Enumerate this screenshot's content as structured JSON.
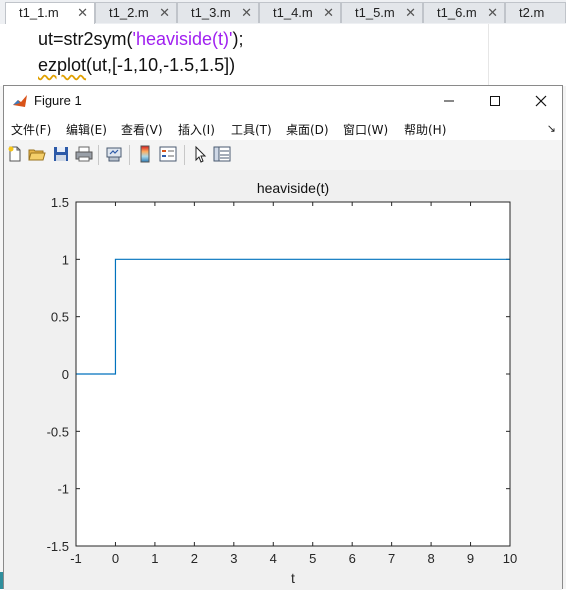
{
  "editor": {
    "tabs": [
      {
        "label": "t1_1.m",
        "active": true
      },
      {
        "label": "t1_2.m"
      },
      {
        "label": "t1_3.m"
      },
      {
        "label": "t1_4.m"
      },
      {
        "label": "t1_5.m"
      },
      {
        "label": "t1_6.m"
      },
      {
        "label": "t2.m"
      }
    ],
    "code": {
      "line1_prefix": "ut=str2sym(",
      "line1_string": "'heaviside(t)'",
      "line1_suffix": ");",
      "line2_fn": "ezplot",
      "line2_args": "(ut,[-1,10,-1.5,1.5])"
    }
  },
  "figure": {
    "title": "Figure 1",
    "menu": [
      "文件(F)",
      "编辑(E)",
      "查看(V)",
      "插入(I)",
      "工具(T)",
      "桌面(D)",
      "窗口(W)",
      "帮助(H)"
    ],
    "toolbar_icons": [
      "new-figure-icon",
      "open-file-icon",
      "save-icon",
      "print-icon",
      "link-plot-icon",
      "colorbar-icon",
      "legend-icon",
      "edit-plot-arrow-icon",
      "property-inspector-icon"
    ]
  },
  "chart_data": {
    "type": "line",
    "title": "heaviside(t)",
    "xlabel": "t",
    "ylabel": "",
    "xlim": [
      -1,
      10
    ],
    "ylim": [
      -1.5,
      1.5
    ],
    "xticks": [
      "-1",
      "0",
      "1",
      "2",
      "3",
      "4",
      "5",
      "6",
      "7",
      "8",
      "9",
      "10"
    ],
    "yticks": [
      "1.5",
      "1",
      "0.5",
      "0",
      "-0.5",
      "-1",
      "-1.5"
    ],
    "series": [
      {
        "x": [
          -1,
          0,
          0,
          10
        ],
        "y": [
          0,
          0,
          1,
          1
        ],
        "color": "#0072bd"
      }
    ],
    "grid": false
  }
}
